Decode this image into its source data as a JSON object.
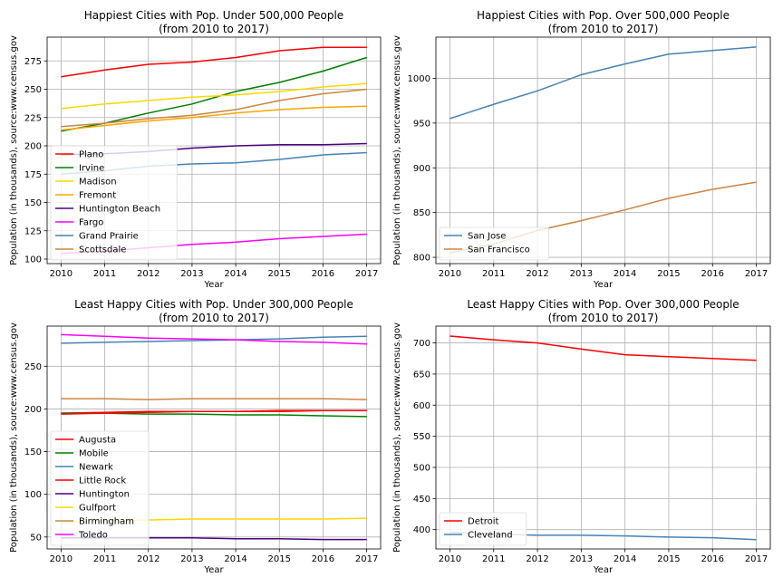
{
  "chart_data": [
    {
      "type": "line",
      "title": "Happiest Cities with Pop. Under 500,000 People\n(from 2010 to 2017)",
      "xlabel": "Year",
      "ylabel": "Population (in thousands), source:www.census.gov",
      "x": [
        2010,
        2011,
        2012,
        2013,
        2014,
        2015,
        2016,
        2017
      ],
      "ylim": [
        96,
        296
      ],
      "yticks": [
        100,
        125,
        150,
        175,
        200,
        225,
        250,
        275
      ],
      "grid": true,
      "legend_position": "lower-left",
      "series": [
        {
          "name": "Plano",
          "color": "#ff0000",
          "values": [
            261,
            267,
            272,
            274,
            278,
            284,
            287,
            287
          ]
        },
        {
          "name": "Irvine",
          "color": "#008000",
          "values": [
            213,
            220,
            229,
            237,
            248,
            256,
            266,
            278
          ]
        },
        {
          "name": "Madison",
          "color": "#ffd700",
          "values": [
            233,
            237,
            240,
            243,
            245,
            248,
            252,
            255
          ]
        },
        {
          "name": "Fremont",
          "color": "#ffa500",
          "values": [
            214,
            218,
            222,
            225,
            229,
            232,
            234,
            235
          ]
        },
        {
          "name": "Huntington Beach",
          "color": "#4b0082",
          "values": [
            192,
            193,
            195,
            198,
            200,
            201,
            201,
            202
          ]
        },
        {
          "name": "Fargo",
          "color": "#ff00ff",
          "values": [
            105,
            107,
            110,
            113,
            115,
            118,
            120,
            122
          ]
        },
        {
          "name": "Grand Prairie",
          "color": "#4682b4",
          "values": [
            175,
            178,
            182,
            184,
            185,
            188,
            192,
            194
          ]
        },
        {
          "name": "Scottsdale",
          "color": "#cd853f",
          "values": [
            217,
            220,
            224,
            227,
            232,
            240,
            246,
            250
          ]
        }
      ]
    },
    {
      "type": "line",
      "title": "Happiest Cities with Pop. Over 500,000 People\n(from 2010 to 2017)",
      "xlabel": "Year",
      "ylabel": "Population (in thousands), source:www.census.gov",
      "x": [
        2010,
        2011,
        2012,
        2013,
        2014,
        2015,
        2016,
        2017
      ],
      "ylim": [
        793,
        1046
      ],
      "yticks": [
        800,
        850,
        900,
        950,
        1000
      ],
      "grid": true,
      "legend_position": "lower-left",
      "series": [
        {
          "name": "San Jose",
          "color": "#4682b4",
          "values": [
            955,
            971,
            986,
            1004,
            1016,
            1027,
            1031,
            1035
          ]
        },
        {
          "name": "San Francisco",
          "color": "#cd853f",
          "values": [
            805,
            815,
            830,
            841,
            853,
            866,
            876,
            884
          ]
        }
      ]
    },
    {
      "type": "line",
      "title": "Least Happy Cities with Pop. Under 300,000 People\n(from 2010 to 2017)",
      "xlabel": "Year",
      "ylabel": "Population (in thousands), source:www.census.gov",
      "x": [
        2010,
        2011,
        2012,
        2013,
        2014,
        2015,
        2016,
        2017
      ],
      "ylim": [
        36,
        297
      ],
      "yticks": [
        50,
        100,
        150,
        200,
        250
      ],
      "grid": true,
      "legend_position": "lower-left",
      "series": [
        {
          "name": "Augusta",
          "color": "#ff0000",
          "values": [
            195,
            196,
            197,
            197,
            197,
            197,
            198,
            198
          ]
        },
        {
          "name": "Mobile",
          "color": "#008000",
          "values": [
            195,
            195,
            194,
            194,
            193,
            193,
            192,
            191
          ]
        },
        {
          "name": "Newark",
          "color": "#4682b4",
          "values": [
            277,
            278,
            279,
            280,
            281,
            282,
            284,
            285
          ]
        },
        {
          "name": "Little Rock",
          "color": "#ff0000",
          "values": [
            194,
            195,
            196,
            197,
            197,
            198,
            198,
            198
          ]
        },
        {
          "name": "Huntington",
          "color": "#4b0082",
          "values": [
            49,
            49,
            49,
            49,
            48,
            48,
            47,
            47
          ]
        },
        {
          "name": "Gulfport",
          "color": "#ffd700",
          "values": [
            67,
            69,
            70,
            71,
            71,
            71,
            71,
            72
          ]
        },
        {
          "name": "Birmingham",
          "color": "#cd853f",
          "values": [
            212,
            212,
            211,
            212,
            212,
            212,
            212,
            211
          ]
        },
        {
          "name": "Toledo",
          "color": "#ff00ff",
          "values": [
            287,
            285,
            283,
            282,
            281,
            279,
            278,
            276
          ]
        }
      ]
    },
    {
      "type": "line",
      "title": "Least Happy Cities with Pop. Over 300,000 People\n(from 2010 to 2017)",
      "xlabel": "Year",
      "ylabel": "Population (in thousands), source:www.census.gov",
      "x": [
        2010,
        2011,
        2012,
        2013,
        2014,
        2015,
        2016,
        2017
      ],
      "ylim": [
        369,
        727
      ],
      "yticks": [
        400,
        450,
        500,
        550,
        600,
        650,
        700
      ],
      "grid": true,
      "legend_position": "lower-left",
      "series": [
        {
          "name": "Detroit",
          "color": "#ff0000",
          "values": [
            711,
            705,
            700,
            690,
            681,
            678,
            675,
            672
          ]
        },
        {
          "name": "Cleveland",
          "color": "#4682b4",
          "values": [
            396,
            393,
            391,
            391,
            390,
            388,
            387,
            384
          ]
        }
      ]
    }
  ]
}
